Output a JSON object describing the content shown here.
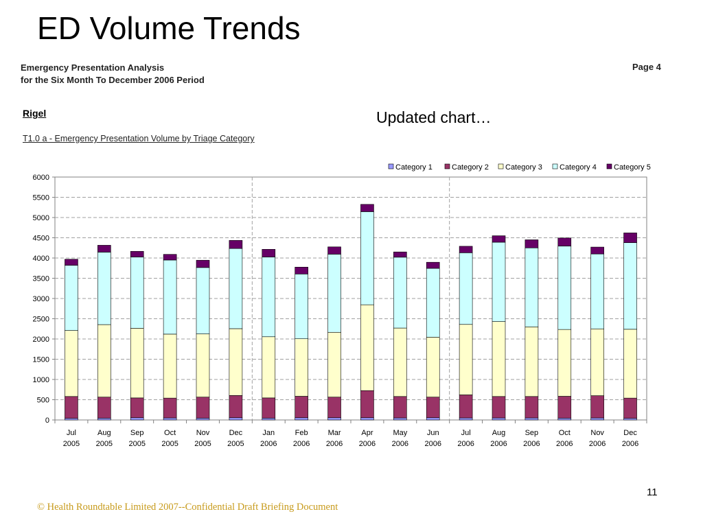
{
  "slide": {
    "title": "ED Volume Trends",
    "report_title_line1": "Emergency Presentation Analysis",
    "report_title_line2": "for the Six Month To December 2006 Period",
    "page": "Page 4",
    "section": "Rigel",
    "chart_subtitle": "T1.0 a - Emergency Presentation Volume by Triage Category",
    "note": "Updated chart…",
    "footer": "© Health Roundtable Limited 2007--Confidential Draft Briefing Document",
    "slide_number": "11"
  },
  "chart_data": {
    "type": "bar",
    "stacked": true,
    "categories": [
      "Jul 2005",
      "Aug 2005",
      "Sep 2005",
      "Oct 2005",
      "Nov 2005",
      "Dec 2005",
      "Jan 2006",
      "Feb 2006",
      "Mar 2006",
      "Apr 2006",
      "May 2006",
      "Jun 2006",
      "Jul 2006",
      "Aug 2006",
      "Sep 2006",
      "Oct 2006",
      "Nov 2006",
      "Dec 2006"
    ],
    "series": [
      {
        "name": "Category 1",
        "color": "#9999ff",
        "values": [
          40,
          45,
          55,
          50,
          45,
          55,
          45,
          55,
          55,
          55,
          50,
          55,
          50,
          50,
          50,
          45,
          50,
          40
        ]
      },
      {
        "name": "Category 2",
        "color": "#993366",
        "values": [
          540,
          520,
          490,
          490,
          520,
          550,
          500,
          530,
          510,
          670,
          530,
          510,
          570,
          530,
          530,
          540,
          550,
          500
        ]
      },
      {
        "name": "Category 3",
        "color": "#ffffcc",
        "values": [
          1630,
          1790,
          1720,
          1580,
          1560,
          1650,
          1510,
          1420,
          1600,
          2120,
          1690,
          1480,
          1740,
          1850,
          1720,
          1650,
          1650,
          1700
        ]
      },
      {
        "name": "Category 4",
        "color": "#ccffff",
        "values": [
          1610,
          1790,
          1760,
          1830,
          1640,
          1980,
          1970,
          1600,
          1930,
          2300,
          1750,
          1700,
          1770,
          1960,
          1950,
          2060,
          1850,
          2140
        ]
      },
      {
        "name": "Category 5",
        "color": "#660066",
        "values": [
          150,
          170,
          140,
          140,
          180,
          200,
          190,
          170,
          180,
          180,
          130,
          150,
          160,
          160,
          200,
          200,
          170,
          240
        ]
      }
    ],
    "ylim": [
      0,
      6000
    ],
    "yticks": [
      0,
      500,
      1000,
      1500,
      2000,
      2500,
      3000,
      3500,
      4000,
      4500,
      5000,
      5500,
      6000
    ],
    "grid": true,
    "legend": "top-right",
    "period_dividers_after": [
      6,
      12
    ]
  }
}
